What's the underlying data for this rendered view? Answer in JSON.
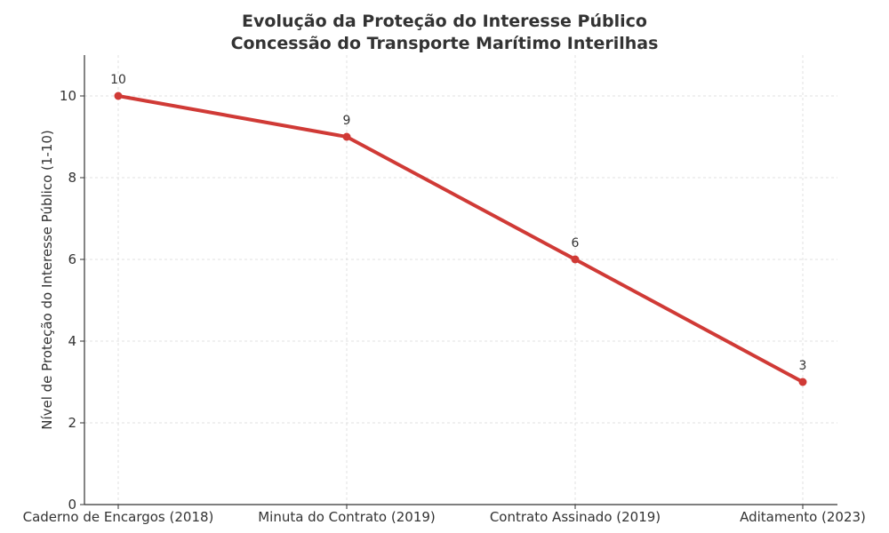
{
  "chart_data": {
    "type": "line",
    "title": "Evolução da Proteção do Interesse Público",
    "subtitle": "Concessão do Transporte Marítimo Interilhas",
    "xlabel": "",
    "ylabel": "Nível de Proteção do Interesse Público (1-10)",
    "categories": [
      "Caderno de Encargos (2018)",
      "Minuta do Contrato (2019)",
      "Contrato Assinado (2019)",
      "Aditamento (2023)"
    ],
    "series": [
      {
        "values": [
          10,
          9,
          6,
          3
        ],
        "color": "#d03a36"
      }
    ],
    "ylim": [
      0,
      11
    ],
    "yticks": [
      0,
      2,
      4,
      6,
      8,
      10
    ],
    "grid": true,
    "legend": "none"
  }
}
